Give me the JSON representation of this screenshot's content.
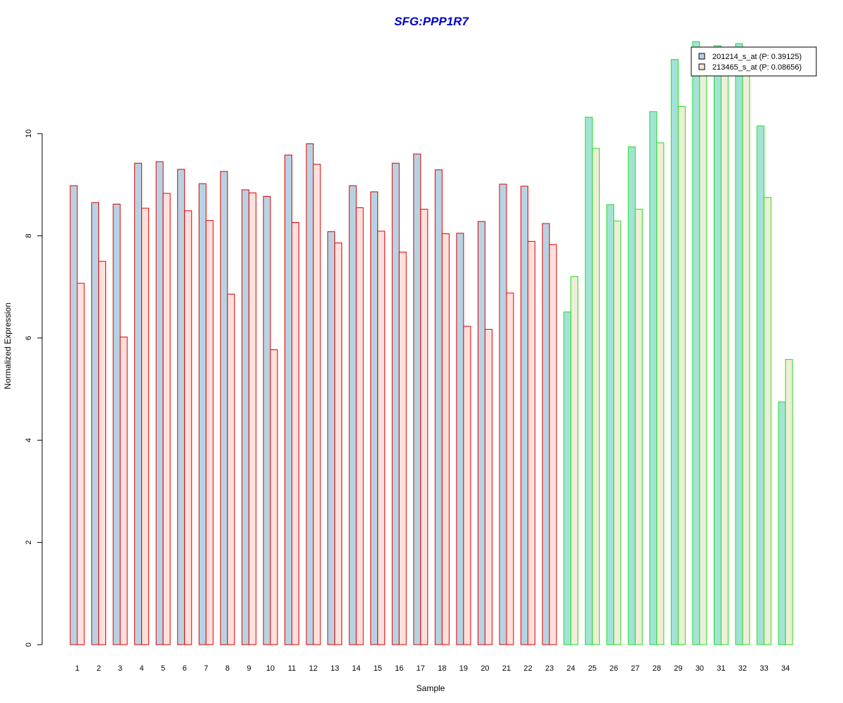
{
  "chart_data": {
    "type": "bar",
    "title": "SFG:PPP1R7",
    "xlabel": "Sample",
    "ylabel": "Normalized Expression",
    "ylim": [
      0,
      12
    ],
    "yticks": [
      0,
      2,
      4,
      6,
      8,
      10
    ],
    "grid": false,
    "legend_position": "top-right",
    "categories": [
      "1",
      "2",
      "3",
      "4",
      "5",
      "6",
      "7",
      "8",
      "9",
      "10",
      "11",
      "12",
      "13",
      "14",
      "15",
      "16",
      "17",
      "18",
      "19",
      "20",
      "21",
      "22",
      "23",
      "24",
      "25",
      "26",
      "27",
      "28",
      "29",
      "30",
      "31",
      "32",
      "33",
      "34"
    ],
    "series": [
      {
        "name": "201214_s_at (P: 0.39125)",
        "values": [
          8.98,
          8.65,
          8.62,
          9.42,
          9.45,
          9.3,
          9.02,
          9.26,
          8.9,
          8.77,
          9.58,
          9.8,
          8.08,
          8.98,
          8.86,
          9.42,
          9.6,
          9.29,
          8.05,
          8.28,
          9.01,
          8.97,
          8.24,
          6.51,
          10.32,
          8.61,
          9.74,
          10.43,
          11.45,
          11.8,
          11.72,
          11.76,
          10.15,
          4.75
        ]
      },
      {
        "name": "213465_s_at (P: 0.08656)",
        "values": [
          7.07,
          7.5,
          6.02,
          8.54,
          8.83,
          8.49,
          8.3,
          6.86,
          8.84,
          5.77,
          8.26,
          9.4,
          7.86,
          8.55,
          8.09,
          7.68,
          8.52,
          8.04,
          6.23,
          6.17,
          6.88,
          7.89,
          7.83,
          7.2,
          9.71,
          8.29,
          8.52,
          9.82,
          10.53,
          11.15,
          11.15,
          11.15,
          8.75,
          5.58
        ]
      }
    ],
    "colors": {
      "group1_series1_fill": "#b7d3e3",
      "group1_series2_fill": "#ffe0dc",
      "group1_border": "#dd0000",
      "group2_series1_fill": "#a3e3d6",
      "group2_series2_fill": "#efeed8",
      "group2_border": "#22dd22",
      "title": "#0000cc"
    },
    "group2_start_index": 23
  }
}
